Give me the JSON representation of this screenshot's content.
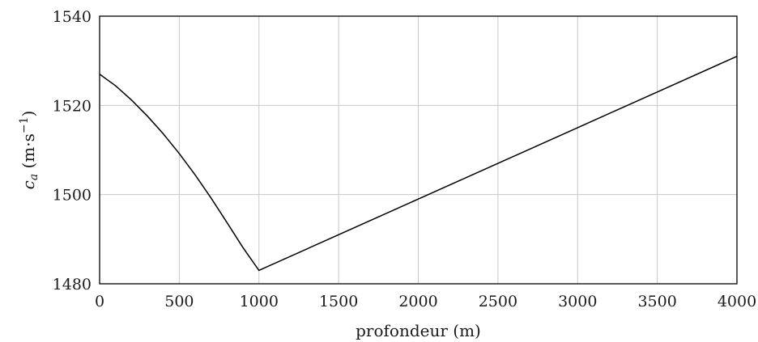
{
  "chart_data": {
    "type": "line",
    "title": "",
    "xlabel": "profondeur (m)",
    "ylabel": {
      "main": "c",
      "subscript": "a",
      "unit_open": " (m·s",
      "unit_exp": "−1",
      "unit_close": ")"
    },
    "xlim": [
      0,
      4000
    ],
    "ylim": [
      1480,
      1540
    ],
    "x_ticks": [
      0,
      500,
      1000,
      1500,
      2000,
      2500,
      3000,
      3500,
      4000
    ],
    "x_tick_labels": [
      "0",
      "500",
      "1000",
      "1500",
      "2000",
      "2500",
      "3000",
      "3500",
      "4000"
    ],
    "y_ticks": [
      1480,
      1500,
      1520,
      1540
    ],
    "y_tick_labels": [
      "1480",
      "1500",
      "1520",
      "1540"
    ],
    "x_grid_ticks": [
      500,
      1000,
      1500,
      2000,
      2500,
      3000,
      3500
    ],
    "y_grid_ticks": [
      1500,
      1520
    ],
    "grid": true,
    "series": [
      {
        "x": [
          0,
          100,
          200,
          300,
          400,
          500,
          600,
          700,
          800,
          900,
          1000,
          1500,
          2000,
          2500,
          3000,
          3500,
          4000
        ],
        "y": [
          1527,
          1524.4,
          1521.2,
          1517.6,
          1513.6,
          1509.2,
          1504.4,
          1499.2,
          1493.7,
          1488.1,
          1483,
          1491,
          1499,
          1507,
          1515,
          1523,
          1531
        ]
      }
    ],
    "colors": {
      "line": "#000000",
      "grid": "#c8c8c8",
      "frame": "#000000"
    }
  }
}
